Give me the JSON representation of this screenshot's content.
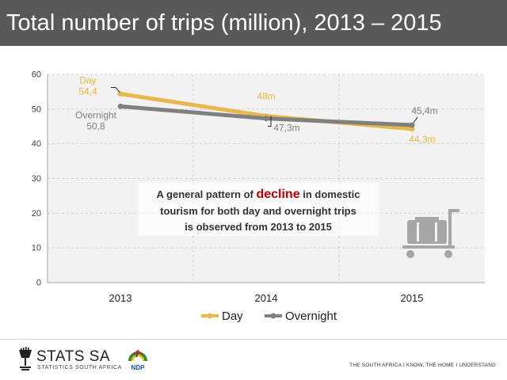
{
  "title": "Total number of trips (million), 2013 – 2015",
  "chart_data": {
    "type": "line",
    "title": "Total number of trips (million), 2013 – 2015",
    "categories": [
      "2013",
      "2014",
      "2015"
    ],
    "ylim": [
      0,
      60
    ],
    "yticks": [
      0,
      10,
      20,
      30,
      40,
      50,
      60
    ],
    "grid": true,
    "legend": "bottom-center",
    "series": [
      {
        "name": "Day",
        "values": [
          54.4,
          48.0,
          44.3
        ],
        "labels": [
          "54,4",
          "48m",
          "44,3m"
        ],
        "color": "#e8b84a"
      },
      {
        "name": "Overnight",
        "values": [
          50.8,
          47.3,
          45.4
        ],
        "labels": [
          "50,8",
          "47,3m",
          "45,4m"
        ],
        "color": "#808080"
      }
    ],
    "annotation": {
      "before": "A general pattern of ",
      "highlight": "decline",
      "after": " in domestic",
      "line2": "tourism for both day and overnight trips",
      "line3": "is observed from 2013 to 2015",
      "highlight_color": "#c00000"
    },
    "icon": "luggage-trolley-icon"
  },
  "footer": {
    "logo_name": "STATS SA",
    "logo_sub": "STATISTICS SOUTH AFRICA",
    "ndp": "NDP",
    "tagline": "THE SOUTH AFRICA I KNOW, THE HOME I UNDERSTAND"
  }
}
